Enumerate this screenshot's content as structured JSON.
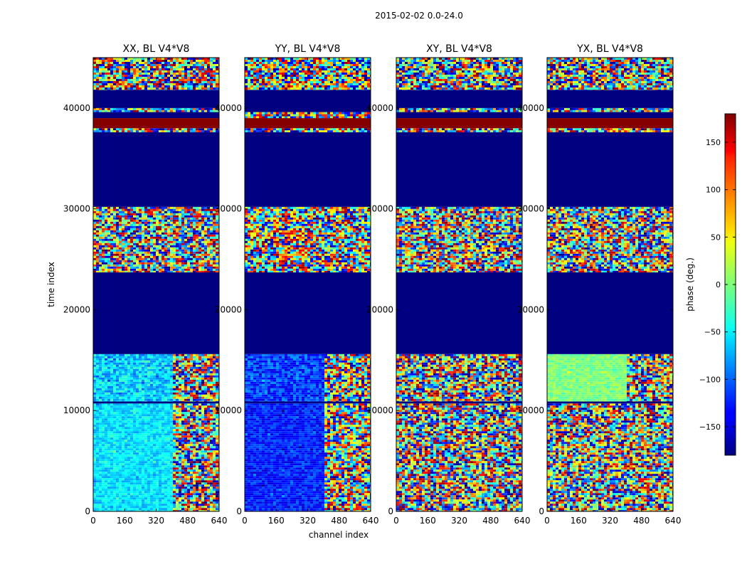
{
  "figure_title": "2015-02-02 0.0-24.0",
  "colormap": "jet",
  "chart_data": {
    "type": "heatmap",
    "suptitle": "2015-02-02 0.0-24.0",
    "xlabel": "channel index",
    "ylabel": "time index",
    "xlim": [
      0,
      640
    ],
    "ylim": [
      0,
      45000
    ],
    "xticks": [
      "0",
      "160",
      "320",
      "480",
      "640"
    ],
    "yticks": [
      "0",
      "10000",
      "20000",
      "30000",
      "40000"
    ],
    "colorbar": {
      "label": "phase (deg.)",
      "range": [
        -180,
        180
      ],
      "ticks": [
        "150",
        "100",
        "50",
        "0",
        "−50",
        "−100",
        "−150"
      ]
    },
    "panels": [
      {
        "title": "XX, BL V4*V8",
        "bands": [
          {
            "t0": 0,
            "t1": 10700,
            "pattern": "noise-low-left",
            "c0": 0,
            "c1": 400,
            "values": [
              -80,
              -30
            ],
            "c1values": [
              -180,
              180
            ]
          },
          {
            "t0": 10700,
            "t1": 10900,
            "pattern": "solid",
            "value": -180
          },
          {
            "t0": 10900,
            "t1": 15600,
            "pattern": "noise-low-left",
            "c0": 0,
            "c1": 400,
            "values": [
              -100,
              -20
            ],
            "c1values": [
              -180,
              180
            ]
          },
          {
            "t0": 15600,
            "t1": 23700,
            "pattern": "solid",
            "value": -180
          },
          {
            "t0": 23700,
            "t1": 30200,
            "pattern": "noise",
            "values": [
              -180,
              180
            ]
          },
          {
            "t0": 30200,
            "t1": 37600,
            "pattern": "solid",
            "value": -180
          },
          {
            "t0": 37600,
            "t1": 38000,
            "pattern": "noise",
            "values": [
              -180,
              180
            ]
          },
          {
            "t0": 38000,
            "t1": 39000,
            "pattern": "solid",
            "value": 178
          },
          {
            "t0": 39000,
            "t1": 39600,
            "pattern": "solid",
            "value": -180
          },
          {
            "t0": 39600,
            "t1": 40000,
            "pattern": "noise",
            "values": [
              -180,
              180
            ]
          },
          {
            "t0": 40000,
            "t1": 41800,
            "pattern": "solid",
            "value": -180
          },
          {
            "t0": 41800,
            "t1": 45000,
            "pattern": "noise",
            "values": [
              -180,
              180
            ]
          }
        ]
      },
      {
        "title": "YY, BL V4*V8",
        "bands": [
          {
            "t0": 0,
            "t1": 10700,
            "pattern": "noise-low-left",
            "c0": 0,
            "c1": 400,
            "values": [
              -150,
              -100
            ],
            "c1values": [
              -180,
              180
            ]
          },
          {
            "t0": 10700,
            "t1": 10900,
            "pattern": "solid",
            "value": -180
          },
          {
            "t0": 10900,
            "t1": 15600,
            "pattern": "noise-low-left",
            "c0": 0,
            "c1": 400,
            "values": [
              -150,
              -80
            ],
            "c1values": [
              -180,
              180
            ]
          },
          {
            "t0": 15600,
            "t1": 23700,
            "pattern": "solid",
            "value": -180
          },
          {
            "t0": 23700,
            "t1": 30200,
            "pattern": "noise",
            "values": [
              -180,
              180
            ]
          },
          {
            "t0": 30200,
            "t1": 37600,
            "pattern": "solid",
            "value": -180
          },
          {
            "t0": 37600,
            "t1": 38000,
            "pattern": "noise",
            "values": [
              -180,
              180
            ]
          },
          {
            "t0": 38000,
            "t1": 39000,
            "pattern": "solid",
            "value": 178
          },
          {
            "t0": 39000,
            "t1": 39600,
            "pattern": "noise",
            "values": [
              -180,
              180
            ]
          },
          {
            "t0": 39600,
            "t1": 41800,
            "pattern": "solid",
            "value": -180
          },
          {
            "t0": 41800,
            "t1": 45000,
            "pattern": "noise",
            "values": [
              -180,
              180
            ]
          }
        ]
      },
      {
        "title": "XY, BL V4*V8",
        "bands": [
          {
            "t0": 0,
            "t1": 10700,
            "pattern": "noise",
            "values": [
              -180,
              180
            ]
          },
          {
            "t0": 10700,
            "t1": 10900,
            "pattern": "solid",
            "value": -180
          },
          {
            "t0": 10900,
            "t1": 15600,
            "pattern": "noise",
            "values": [
              -180,
              180
            ]
          },
          {
            "t0": 15600,
            "t1": 23700,
            "pattern": "solid",
            "value": -180
          },
          {
            "t0": 23700,
            "t1": 30200,
            "pattern": "noise",
            "values": [
              -180,
              180
            ]
          },
          {
            "t0": 30200,
            "t1": 37600,
            "pattern": "solid",
            "value": -180
          },
          {
            "t0": 37600,
            "t1": 38000,
            "pattern": "noise",
            "values": [
              -180,
              180
            ]
          },
          {
            "t0": 38000,
            "t1": 39000,
            "pattern": "solid",
            "value": 178
          },
          {
            "t0": 39000,
            "t1": 39600,
            "pattern": "solid",
            "value": -180
          },
          {
            "t0": 39600,
            "t1": 40000,
            "pattern": "noise",
            "values": [
              -180,
              180
            ]
          },
          {
            "t0": 40000,
            "t1": 41800,
            "pattern": "solid",
            "value": -180
          },
          {
            "t0": 41800,
            "t1": 45000,
            "pattern": "noise",
            "values": [
              -180,
              180
            ]
          }
        ]
      },
      {
        "title": "YX, BL V4*V8",
        "bands": [
          {
            "t0": 0,
            "t1": 10700,
            "pattern": "noise",
            "values": [
              -180,
              180
            ]
          },
          {
            "t0": 10700,
            "t1": 10900,
            "pattern": "solid",
            "value": -180
          },
          {
            "t0": 10900,
            "t1": 15600,
            "pattern": "noise-low-left",
            "c0": 0,
            "c1": 400,
            "values": [
              -20,
              20
            ],
            "c1values": [
              -180,
              180
            ]
          },
          {
            "t0": 15600,
            "t1": 23700,
            "pattern": "solid",
            "value": -180
          },
          {
            "t0": 23700,
            "t1": 30200,
            "pattern": "noise",
            "values": [
              -180,
              180
            ]
          },
          {
            "t0": 30200,
            "t1": 37600,
            "pattern": "solid",
            "value": -180
          },
          {
            "t0": 37600,
            "t1": 38000,
            "pattern": "noise",
            "values": [
              -180,
              180
            ]
          },
          {
            "t0": 38000,
            "t1": 39000,
            "pattern": "solid",
            "value": 178
          },
          {
            "t0": 39000,
            "t1": 39600,
            "pattern": "solid",
            "value": -180
          },
          {
            "t0": 39600,
            "t1": 40000,
            "pattern": "noise",
            "values": [
              -180,
              180
            ]
          },
          {
            "t0": 40000,
            "t1": 41800,
            "pattern": "solid",
            "value": -180
          },
          {
            "t0": 41800,
            "t1": 45000,
            "pattern": "noise",
            "values": [
              -180,
              180
            ]
          }
        ]
      }
    ]
  }
}
